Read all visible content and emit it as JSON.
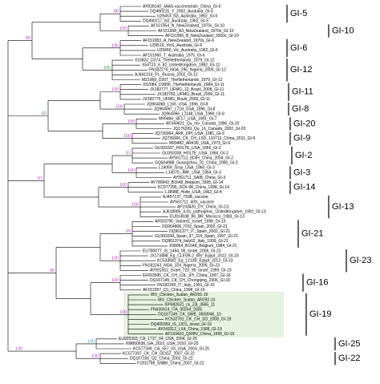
{
  "clades": [
    {
      "label": "GI-5",
      "bootstrap": {
        "text": "88",
        "color": "#c040c0"
      },
      "members": [
        {
          "label": "AY839140_JAAS-vaccinestrain_China_GI-5"
        },
        {
          "label": "DQ490215_Y_2002_Australia_GI-5"
        },
        {
          "label": "U29453_N3_Australia_1962_GI-5"
        },
        {
          "label": "DQ490217_N2_Australia_1962_GI-5"
        }
      ]
    },
    {
      "label": "GI-10",
      "bootstrap": {
        "text": "100",
        "color": "#c040c0"
      },
      "members": [
        {
          "label": "AF151954_N_NewZealand_1970s_GI-10"
        },
        {
          "label": "AF151958_A3_NewZealand_1970s_GI-10"
        },
        {
          "label": "AF151956_B_NewZealand_2000s_GI-10"
        }
      ]
    },
    {
      "label": "GI-6",
      "bootstrap": {
        "text": "100",
        "color": "#c040c0"
      },
      "members": [
        {
          "label": "AF151953_A_NewZealand_1970s_GI-6"
        },
        {
          "label": "U29519_VicS_Australia_GI-6"
        },
        {
          "label": "U29450_Vic_Australia_1962_GI-6"
        },
        {
          "label": "AF151960_T_Australia_1975_GI-6"
        }
      ]
    },
    {
      "label": "GI-12",
      "bootstrap": {
        "text": "100",
        "color": "#40a040"
      },
      "members": [
        {
          "label": "X15832_D274_TheNetherlands_1979_GI-12"
        },
        {
          "label": "X54723_6_82_UnitedKingdom_1982_GI-12"
        },
        {
          "label": "FN182276_NGA_295_Nigeria_2006_GI-12"
        },
        {
          "label": "AJ441314_PL_Russia_2002_GI-12"
        },
        {
          "label": "M21969_D207_TheNetherlands_1979_GI-12"
        }
      ]
    },
    {
      "label": "GI-11",
      "bootstrap": {
        "text": "100",
        "color": "#c040c0"
      },
      "members": [
        {
          "label": "X52084_D3896_TheNetherlands_1984_GI-11"
        },
        {
          "label": "JX182777_UFMG_12_Brazil_2008_GI-11"
        },
        {
          "label": "JX182783_UFMG_Brazil_2009_GI-11"
        },
        {
          "label": "JX182775_UFMG_Brazil_2009_GI-11"
        }
      ]
    },
    {
      "label": "GI-8",
      "bootstrap": {
        "text": "100",
        "color": "#c040c0"
      },
      "members": [
        {
          "label": "JQ964068_L165_USA_1996_GI-8"
        },
        {
          "label": "JQ964067_L718_USA_1996_GI-8"
        },
        {
          "label": "JQ964066_L1148_USA_1996_GI-8"
        }
      ]
    },
    {
      "label": "GI-20",
      "bootstrap": {
        "text": "100",
        "color": "#c040c0"
      },
      "members": [
        {
          "label": "M99484_SE17_USA_1991_GI-7"
        },
        {
          "label": "AF349621_Qu_mv_Canada_1996_GI-20"
        },
        {
          "label": "JQ176269_Qu_16_Canada_2002_GI-20"
        }
      ]
    },
    {
      "label": "GI-9",
      "bootstrap": {
        "text": "100",
        "color": "#c040c0"
      },
      "members": [
        {
          "label": "JQ739364_ARK_DPI_USA_1981_GI-9"
        },
        {
          "label": "JQ739366_CK_CH_LSD_110712_China_2011_GI-9"
        },
        {
          "label": "M99482_ARK99_USA_1973_GI-9"
        }
      ]
    },
    {
      "label": "GI-2",
      "bootstrap": {
        "text": "97",
        "color": "#c040c0"
      },
      "members": [
        {
          "label": "GU393337_HOLTE_USA_1956_GI-2"
        },
        {
          "label": "GU393338_HOLTE_USA_1956_GI-2"
        },
        {
          "label": "AY561713_SDIH_China_2004_GI-2"
        },
        {
          "label": "GQ504988_Guangzhou_01_China_2006_GI-2"
        }
      ]
    },
    {
      "label": "GI-3",
      "bootstrap": {
        "text": "100",
        "color": "#c040c0"
      },
      "members": [
        {
          "label": "L14069_Gray_USA_1960_GI-3"
        },
        {
          "label": "L14070_JMK_USA_1964_GI-3"
        },
        {
          "label": "AY561711_SAIB_China_GI-3"
        }
      ]
    },
    {
      "label": "GI-14",
      "bootstrap": {
        "text": "100",
        "color": "#c040c0"
      },
      "members": [
        {
          "label": "AY789942_B1648_Belgium_1995_GI-14"
        },
        {
          "label": "KC577395_SCK-98_China_1998_GI-14"
        },
        {
          "label": "L18988_Holte_USA_1962_GI-4"
        }
      ]
    },
    {
      "label": "GI-13",
      "bootstrap": {
        "text": "100",
        "color": "#c040c0"
      },
      "members": [
        {
          "label": "AJ457137_793B_vaccine"
        },
        {
          "label": "AY561711_4/91_vaccine"
        },
        {
          "label": "AF193420_DY_China_GI-13"
        },
        {
          "label": "AJ618985_4-91_pathogenic_UnitedKingdom_1991_GI-13"
        },
        {
          "label": "EU914938_86_BR_Morocco_1983_GI-13"
        }
      ]
    },
    {
      "label": "GI-21",
      "bootstrap": {
        "text": "99",
        "color": "#c040c0"
      },
      "members": [
        {
          "label": "AF093795_Variant1_Israel_1998_GI-13"
        },
        {
          "label": "DQ064806_IT02_Spain_2002_GI-21"
        },
        {
          "label": "DQ901377_IT_Spain_2002_GI-21"
        },
        {
          "label": "GU393334_Spain_97_314_Spain_1997_GI-21"
        },
        {
          "label": "DQ901374_Italy02_Italy_1999_GI-21"
        },
        {
          "label": "X58064_B1648_Belgium_1984_GI-21"
        }
      ]
    },
    {
      "label": "GI-23",
      "bootstrap": {
        "text": "100",
        "color": "#c040c0"
      },
      "members": [
        {
          "label": "EU780077_IS_1494_06_Israel_2006_GI-23"
        },
        {
          "label": "JX173488_Eg_CLEVB-2_IBV_Egypt_2012_GI-23"
        },
        {
          "label": "KC533682_Eg_1212B_Egypt_2012_GI-23"
        },
        {
          "label": "FN182243_NGA_324_Nigeria_2006_GI-23"
        },
        {
          "label": "AY091552_Israel_720_99_Israel_1999_GI-23"
        }
      ]
    },
    {
      "label": "GI-16",
      "bootstrap": {
        "text": "100",
        "color": "#c040c0"
      },
      "members": [
        {
          "label": "EF093595_CK_CH_LDL_97I_China_1997_GI-16"
        },
        {
          "label": "DQ167145_CK_CH_Chongqing_2006_GI-16"
        },
        {
          "label": "FN182245_IT_Italy_1991_GI-16"
        },
        {
          "label": "AF151957_Q1_China_1998_GI-16"
        }
      ]
    },
    {
      "label": "GI-19",
      "highlight": true,
      "bootstrap": {
        "text": "100",
        "color": "#c040c0"
      },
      "members": [
        {
          "label": "IBV_Chicken_Sudan_AR291-10",
          "color": "#e02020"
        },
        {
          "label": "IBV_Chicken_Sudan_AR292-10",
          "color": "#e02020"
        },
        {
          "label": "KP682631_ck_ZA_3665_11"
        },
        {
          "label": "FN430414_ITA_90254_2005"
        },
        {
          "label": "DQ167149_CK_SWE_0658946_10"
        },
        {
          "label": "KC532781_CK_CH_SD_2008_GI-19"
        },
        {
          "label": "DQ400359_IS_1201_Israel_GI-19"
        },
        {
          "label": "AY043312_LX4_China_1999_GI-19"
        },
        {
          "label": "AF193423_QXIBV_China_1999_GI-19"
        }
      ]
    },
    {
      "label": "GI-25",
      "bootstrap": {
        "text": "100",
        "color": "#40a0c0"
      },
      "members": [
        {
          "label": "EU925393_CA_1737_04_USA_2004_GI-25"
        },
        {
          "label": "KM660636_GA_2010_USA_2010_GI-25"
        },
        {
          "label": "KC577349_CA_557_03_USA_2003_GI-25"
        }
      ]
    },
    {
      "label": "GI-22",
      "bootstrap": {
        "text": "100",
        "color": "#c040c0"
      },
      "members": [
        {
          "label": "KC577397_CK_CH_GDGZ_2007_GI-22"
        },
        {
          "label": "DQ167150_Q2_China_2002_GI-22"
        },
        {
          "label": "FJ202798_SNBK_China_2007_GI-22"
        }
      ]
    }
  ],
  "backbone_support": [
    {
      "text": "89",
      "color": "#c040c0"
    },
    {
      "text": "92",
      "color": "#40a040"
    },
    {
      "text": "97",
      "color": "#c040c0"
    },
    {
      "text": "96",
      "color": "#c040c0"
    },
    {
      "text": "100",
      "color": "#c040c0"
    }
  ]
}
